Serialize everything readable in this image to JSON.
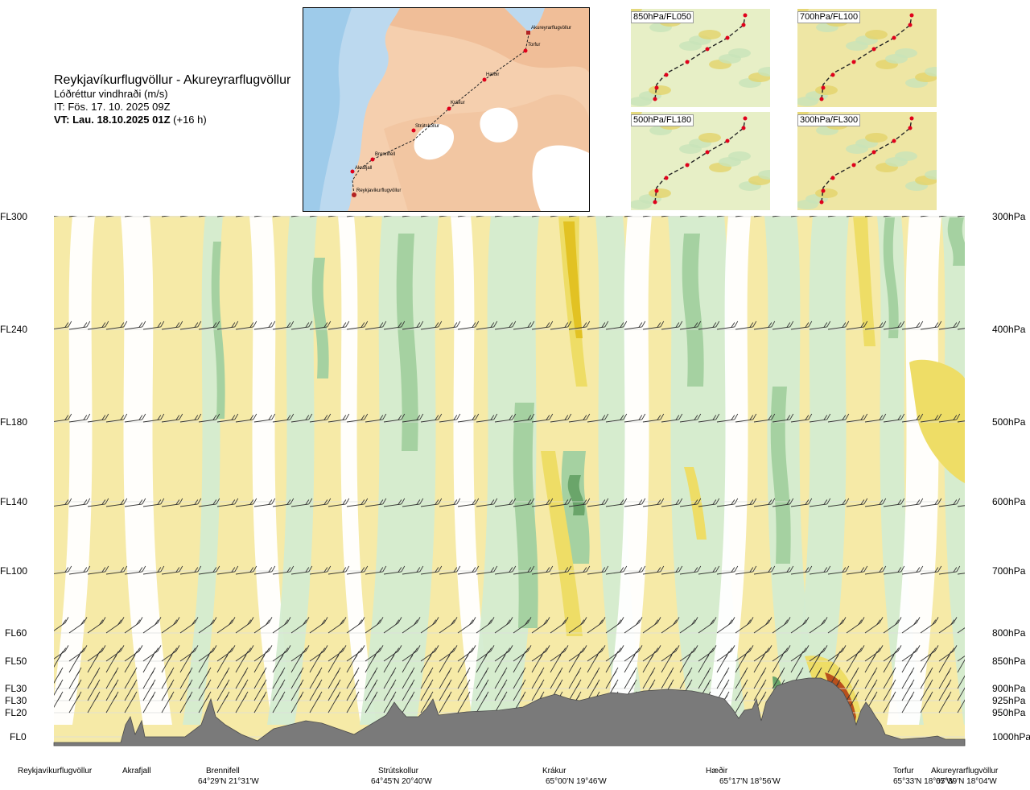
{
  "header": {
    "route": "Reykjavíkurflugvöllur - Akureyrarflugvöllur",
    "parameter": "Lóðréttur vindhraði (m/s)",
    "issue_time": "IT: Fös. 17. 10. 2025 09Z",
    "valid_time_bold": "VT: Lau. 18.10.2025 01Z",
    "valid_time_offset": "(+16 h)"
  },
  "map": {
    "stations": [
      "Akureyrarflugvöllur",
      "Torfur",
      "Hæðir",
      "Krákur",
      "Strútskollur",
      "Brennifell",
      "Akrafjall",
      "Reykjavíkurflugvöllur"
    ]
  },
  "thumbnails": [
    "850hPa/FL050",
    "700hPa/FL100",
    "500hPa/FL180",
    "300hPa/FL300"
  ],
  "chart_data": {
    "type": "heatmap",
    "description_of_fill": "filled contours of vertical wind speed with wind barbs along a cross-section",
    "left_axis_labels": [
      "FL300",
      "FL240",
      "FL180",
      "FL140",
      "FL100",
      "FL60",
      "FL50",
      "FL30",
      "FL30",
      "FL20",
      "FL0"
    ],
    "right_axis_labels": [
      "300hPa",
      "400hPa",
      "500hPa",
      "600hPa",
      "700hPa",
      "800hPa",
      "850hPa",
      "900hPa",
      "925hPa",
      "950hPa",
      "1000hPa"
    ],
    "pressure_levels_hpa": [
      300,
      400,
      500,
      600,
      700,
      800,
      850,
      900,
      925,
      950,
      1000
    ],
    "waypoints": [
      {
        "name": "Reykjavíkurflugvöllur",
        "coord": ""
      },
      {
        "name": "Akrafjall",
        "coord": ""
      },
      {
        "name": "Brennifell",
        "coord": "64°29'N 21°31'W"
      },
      {
        "name": "Strútskollur",
        "coord": "64°45'N 20°40'W"
      },
      {
        "name": "Krákur",
        "coord": "65°00'N 19°46'W"
      },
      {
        "name": "Hæðir",
        "coord": "65°17'N 18°56'W"
      },
      {
        "name": "Torfur",
        "coord": "65°33'N 18°07'W"
      },
      {
        "name": "Akureyrarflugvöllur",
        "coord": "65°39'N 18°04'W"
      }
    ],
    "colors": {
      "strong_down": "#6aa56a",
      "down": "#a5d1a1",
      "weak_down": "#d4ecd0",
      "neutral": "#ffffff",
      "weak_up": "#f6eaa7",
      "up": "#eedd66",
      "strong_up": "#e2c223",
      "very_strong_up": "#b8501c",
      "terrain": "#7a7a7a"
    },
    "grid": true
  }
}
